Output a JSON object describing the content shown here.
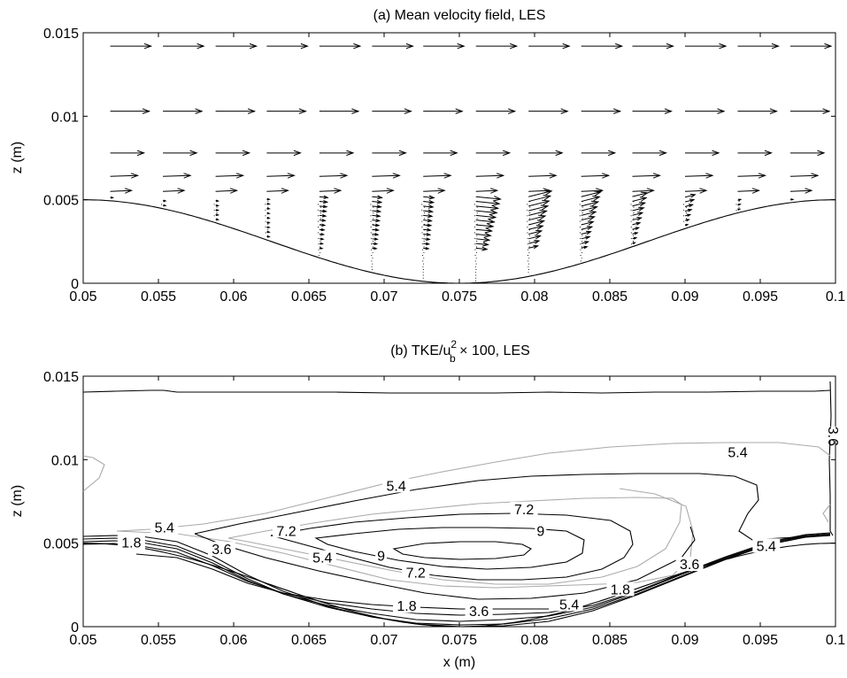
{
  "chart_data": [
    {
      "type": "quiver",
      "title": "(a) Mean velocity field, LES",
      "xlabel": "",
      "ylabel": "z (m)",
      "xlim": [
        0.05,
        0.1
      ],
      "ylim": [
        0,
        0.015
      ],
      "x_ticks": [
        "0.05",
        "0.055",
        "0.06",
        "0.065",
        "0.07",
        "0.075",
        "0.08",
        "0.085",
        "0.09",
        "0.095",
        "0.1"
      ],
      "y_ticks": [
        "0",
        "0.005",
        "0.01",
        "0.015"
      ],
      "bed_profile": "z = 0.0025*(1+cos(2*pi*(x-0.05)/0.05))",
      "arrow_columns_x": [
        0.0518,
        0.0553,
        0.0588,
        0.0622,
        0.0657,
        0.0692,
        0.0726,
        0.0761,
        0.0796,
        0.0831,
        0.0865,
        0.09,
        0.0935,
        0.097
      ],
      "arrow_rows_z": [
        0.0142,
        0.0103,
        0.0078,
        0.0064,
        0.0055
      ],
      "bed_region_note": "dense arrows near bed in 0.065-0.09, small/near-zero velocity in trough (recirculation)"
    },
    {
      "type": "contour",
      "title_prefix": "(b) TKE/u",
      "title_sup": "2",
      "title_sub": "b",
      "title_suffix": " × 100, LES",
      "xlabel": "x (m)",
      "ylabel": "z (m)",
      "xlim": [
        0.05,
        0.1
      ],
      "ylim": [
        0,
        0.015
      ],
      "x_ticks": [
        "0.05",
        "0.055",
        "0.06",
        "0.065",
        "0.07",
        "0.075",
        "0.08",
        "0.085",
        "0.09",
        "0.095",
        "0.1"
      ],
      "y_ticks": [
        "0",
        "0.005",
        "0.01",
        "0.015"
      ],
      "contour_levels": [
        1.8,
        3.6,
        5.4,
        7.2,
        9
      ],
      "labels": [
        {
          "text": "5.4",
          "x": 0.0935,
          "z": 0.0103
        },
        {
          "text": "5.4",
          "x": 0.0708,
          "z": 0.0083
        },
        {
          "text": "7.2",
          "x": 0.0793,
          "z": 0.0069
        },
        {
          "text": "9",
          "x": 0.0804,
          "z": 0.0056
        },
        {
          "text": "5.4",
          "x": 0.0554,
          "z": 0.0058
        },
        {
          "text": "7.2",
          "x": 0.0635,
          "z": 0.0056
        },
        {
          "text": "9",
          "x": 0.0698,
          "z": 0.0041
        },
        {
          "text": "1.8",
          "x": 0.0532,
          "z": 0.0049
        },
        {
          "text": "3.6",
          "x": 0.0592,
          "z": 0.0045
        },
        {
          "text": "5.4",
          "x": 0.0659,
          "z": 0.004
        },
        {
          "text": "7.2",
          "x": 0.0721,
          "z": 0.0031
        },
        {
          "text": "1.8",
          "x": 0.0715,
          "z": 0.0011
        },
        {
          "text": "3.6",
          "x": 0.0763,
          "z": 0.0008
        },
        {
          "text": "5.4",
          "x": 0.0823,
          "z": 0.0012
        },
        {
          "text": "1.8",
          "x": 0.0857,
          "z": 0.0021
        },
        {
          "text": "3.6",
          "x": 0.0903,
          "z": 0.0036
        },
        {
          "text": "5.4",
          "x": 0.0954,
          "z": 0.0047
        },
        {
          "text": "3.6",
          "x": 0.0997,
          "z": 0.0114
        }
      ]
    }
  ]
}
